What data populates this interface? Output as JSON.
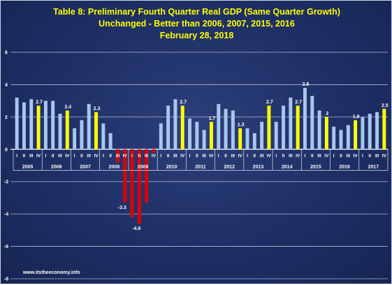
{
  "title_lines": [
    "Table 8: Preliminary  Fourth Quarter Real GDP (Same Quarter Growth)",
    "Unchanged - Better than 2006, 2007, 2015, 2016",
    "February 28, 2018"
  ],
  "source": "www.itstheeconomy.info",
  "colors": {
    "background": "#1e2f66",
    "q1_q3_bar": "#a9c6ee",
    "q4_bar": "#ffff00",
    "negative_bar": "#e00000",
    "text": "#ffffff",
    "title": "#ffff00",
    "grid": "#c8d2e8"
  },
  "chart_data": {
    "type": "bar",
    "title": "Table 8: Preliminary  Fourth Quarter Real GDP (Same Quarter Growth)",
    "ylim": [
      -8,
      6
    ],
    "yticks": [
      -8,
      -6,
      -4,
      -2,
      0,
      2,
      4,
      6
    ],
    "grid": true,
    "quarter_labels": [
      "I",
      "II",
      "III",
      "IV"
    ],
    "years": [
      {
        "year": "2005",
        "values": [
          3.2,
          2.9,
          3.1,
          2.7
        ],
        "labels": [
          null,
          null,
          null,
          "2.7"
        ]
      },
      {
        "year": "2006",
        "values": [
          3.0,
          3.0,
          2.2,
          2.4
        ],
        "labels": [
          null,
          null,
          null,
          "2.4"
        ]
      },
      {
        "year": "2007",
        "values": [
          1.3,
          1.8,
          2.8,
          2.3
        ],
        "labels": [
          null,
          null,
          null,
          "2.3"
        ]
      },
      {
        "year": "2008",
        "values": [
          1.6,
          1.0,
          -0.8,
          -3.3
        ],
        "labels": [
          null,
          null,
          null,
          "-3.3"
        ]
      },
      {
        "year": "2009",
        "values": [
          -4.2,
          -4.6,
          -3.3,
          -0.2
        ],
        "labels": [
          null,
          "-4.6",
          null,
          null
        ]
      },
      {
        "year": "2010",
        "values": [
          1.6,
          2.7,
          3.1,
          2.7
        ],
        "labels": [
          null,
          null,
          null,
          "2.7"
        ]
      },
      {
        "year": "2011",
        "values": [
          1.9,
          1.7,
          1.2,
          1.7
        ],
        "labels": [
          null,
          null,
          null,
          "1.7"
        ]
      },
      {
        "year": "2012",
        "values": [
          2.8,
          2.5,
          2.4,
          1.3
        ],
        "labels": [
          null,
          null,
          null,
          "1.3"
        ]
      },
      {
        "year": "2013",
        "values": [
          1.3,
          1.0,
          1.7,
          2.7
        ],
        "labels": [
          null,
          null,
          null,
          "2.7"
        ]
      },
      {
        "year": "2014",
        "values": [
          1.7,
          2.7,
          3.2,
          2.7
        ],
        "labels": [
          null,
          null,
          null,
          "2.7"
        ]
      },
      {
        "year": "2015",
        "values": [
          3.8,
          3.3,
          2.4,
          2.0
        ],
        "labels": [
          "3.8",
          null,
          null,
          "2"
        ]
      },
      {
        "year": "2016",
        "values": [
          1.4,
          1.2,
          1.5,
          1.8
        ],
        "labels": [
          null,
          null,
          null,
          "1.8"
        ]
      },
      {
        "year": "2017",
        "values": [
          2.0,
          2.2,
          2.3,
          2.5
        ],
        "labels": [
          null,
          null,
          null,
          "2.5"
        ]
      }
    ]
  }
}
